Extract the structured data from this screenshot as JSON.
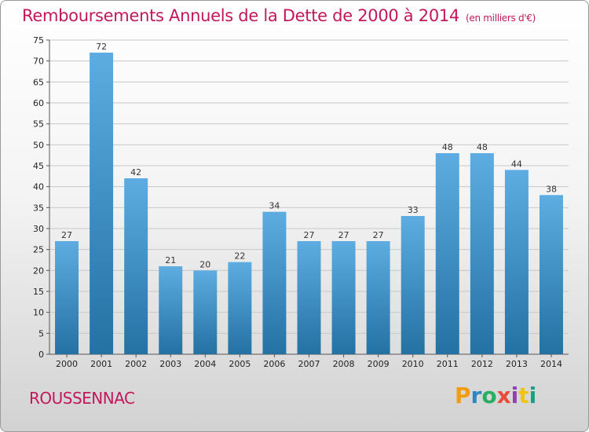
{
  "header": {
    "title": "Remboursements Annuels de la Dette de 2000 à 2014",
    "unit": "(en milliers d'€)"
  },
  "footer": {
    "commune": "ROUSSENNAC",
    "logo": {
      "p": "P",
      "r": "r",
      "o": "o",
      "x": "x",
      "i1": "i",
      "t": "t",
      "i2": "i"
    }
  },
  "colors": {
    "title": "#c2185b",
    "bar_top": "#5dade2",
    "bar_bottom": "#2471a3",
    "grid": "#c8c8c8"
  },
  "chart_data": {
    "type": "bar",
    "title": "Remboursements Annuels de la Dette de 2000 à 2014",
    "xlabel": "",
    "ylabel": "",
    "categories": [
      "2000",
      "2001",
      "2002",
      "2003",
      "2004",
      "2005",
      "2006",
      "2007",
      "2008",
      "2009",
      "2010",
      "2011",
      "2012",
      "2013",
      "2014"
    ],
    "values": [
      27,
      72,
      42,
      21,
      20,
      22,
      34,
      27,
      27,
      27,
      33,
      48,
      48,
      44,
      38
    ],
    "ylim": [
      0,
      75
    ],
    "yticks": [
      0,
      5,
      10,
      15,
      20,
      25,
      30,
      35,
      40,
      45,
      50,
      55,
      60,
      65,
      70,
      75
    ],
    "grid": true,
    "data_labels": true
  }
}
